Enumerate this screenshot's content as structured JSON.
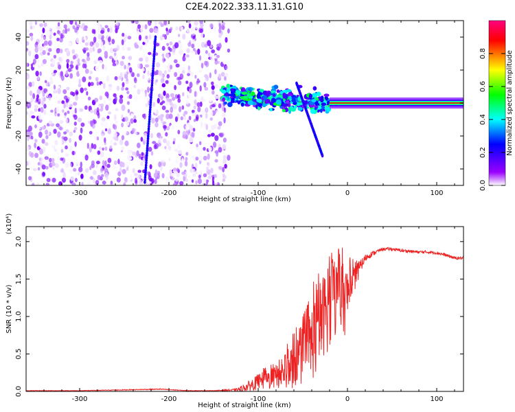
{
  "title": "C2E4.2022.333.11.31.G10",
  "colors": {
    "snr_line": "#ee2222",
    "axis": "#000000"
  },
  "chart_data": [
    {
      "type": "heatmap",
      "title": "C2E4.2022.333.11.31.G10",
      "xlabel": "Height of straight line (km)",
      "ylabel": "Frequency (Hz)",
      "xlim": [
        -360,
        130
      ],
      "ylim": [
        -50,
        50
      ],
      "xticks": [
        -300,
        -200,
        -100,
        0,
        100
      ],
      "xtick_labels": [
        "-300",
        "-200",
        "-100",
        "0",
        "100"
      ],
      "yticks": [
        -40,
        -20,
        0,
        20,
        40
      ],
      "ytick_labels": [
        "-40",
        "-20",
        "0",
        "20",
        "40"
      ],
      "colorbar": {
        "label": "Normalized spectral amplitude",
        "range": [
          0,
          1
        ],
        "ticks": [
          0,
          0.2,
          0.4,
          0.6,
          0.8
        ],
        "tick_labels": [
          "0.0",
          "0.2",
          "0.4",
          "0.6",
          "0.8"
        ],
        "colormap": [
          "#ffffff",
          "#7b00ff",
          "#0000ff",
          "#00ffff",
          "#00ff00",
          "#ffff00",
          "#ff0000",
          "#ff0080"
        ]
      },
      "regions": [
        {
          "name": "noise",
          "x_range": [
            -360,
            -133
          ],
          "y_range": [
            -50,
            50
          ],
          "level": 0.1
        },
        {
          "name": "fan",
          "x_range": [
            -140,
            -20
          ],
          "y_center_start": 5,
          "y_center_end": 0,
          "level": 0.5
        },
        {
          "name": "carrier",
          "x_range": [
            -20,
            130
          ],
          "y_center": 0,
          "level": 0.9
        }
      ],
      "streaks": [
        {
          "x_start": -215,
          "y_start": 40,
          "x_end": -227,
          "y_end": -48
        },
        {
          "x_start": -57,
          "y_start": 12,
          "x_end": -28,
          "y_end": -32
        }
      ]
    },
    {
      "type": "line",
      "xlabel": "Height of straight line (km)",
      "ylabel": "SNR (10 * v/v)",
      "y_scale_label": "(x10⁴)",
      "xlim": [
        -360,
        130
      ],
      "ylim": [
        0,
        2.2
      ],
      "xticks": [
        -300,
        -200,
        -100,
        0,
        100
      ],
      "xtick_labels": [
        "-300",
        "-200",
        "-100",
        "0",
        "100"
      ],
      "yticks": [
        0,
        0.5,
        1.0,
        1.5,
        2.0
      ],
      "ytick_labels": [
        "0.0",
        "0.5",
        "1.0",
        "1.5",
        "2.0"
      ],
      "series": [
        {
          "x": [
            -360,
            -300,
            -250,
            -210,
            -180,
            -150,
            -125,
            -115,
            -105,
            -95,
            -85,
            -75,
            -65,
            -55,
            -45,
            -35,
            -28,
            -20,
            -14,
            -8,
            -3,
            0,
            5,
            10,
            15,
            20,
            25,
            30,
            35,
            40,
            50,
            60,
            70,
            80,
            90,
            100,
            110,
            115,
            120,
            130
          ],
          "y": [
            0.01,
            0.01,
            0.02,
            0.03,
            0.01,
            0.01,
            0.02,
            0.05,
            0.1,
            0.14,
            0.17,
            0.22,
            0.3,
            0.42,
            0.55,
            0.78,
            1.0,
            1.15,
            1.25,
            1.3,
            1.2,
            1.3,
            1.45,
            1.55,
            1.68,
            1.78,
            1.82,
            1.85,
            1.88,
            1.9,
            1.9,
            1.88,
            1.87,
            1.86,
            1.86,
            1.85,
            1.82,
            1.8,
            1.78,
            1.78
          ],
          "noise_amplitude": [
            0.003,
            0.003,
            0.005,
            0.006,
            0.003,
            0.003,
            0.015,
            0.05,
            0.09,
            0.12,
            0.15,
            0.18,
            0.28,
            0.35,
            0.45,
            0.6,
            0.55,
            0.6,
            0.55,
            0.5,
            0.45,
            0.4,
            0.25,
            0.15,
            0.08,
            0.05,
            0.04,
            0.03,
            0.02,
            0.02,
            0.02,
            0.02,
            0.02,
            0.02,
            0.02,
            0.02,
            0.02,
            0.02,
            0.02,
            0.02
          ]
        }
      ]
    }
  ]
}
